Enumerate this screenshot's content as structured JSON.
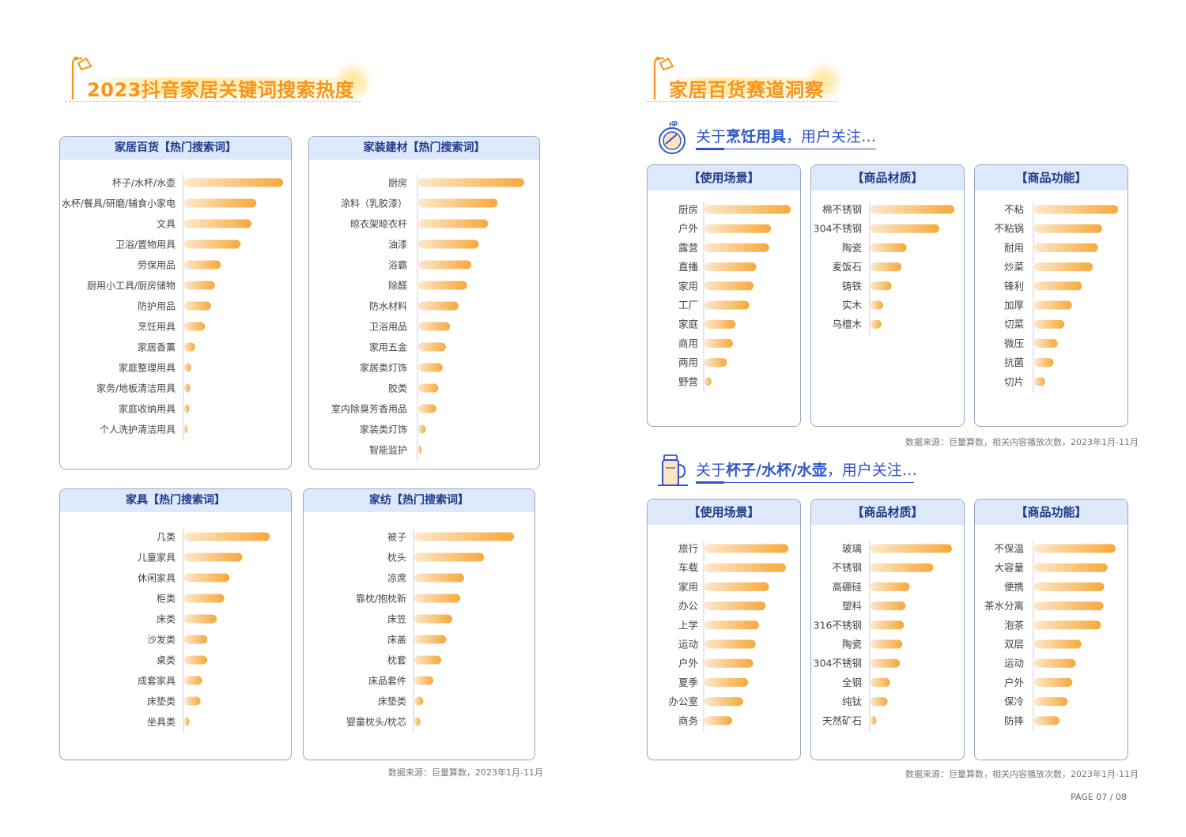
{
  "left_title": "2023抖音家居关键词搜索热度",
  "right_title": "家居百货赛道洞察",
  "colors": {
    "bar_start": "#fde8cc",
    "bar_end": "#f7a83a",
    "header_bg": "#dde9fb",
    "header_text": "#1f3a8a",
    "title_orange": "#f7941d",
    "accent_blue": "#2f55c8"
  },
  "icons": {
    "title_icon": "lamp-icon",
    "cooking_icon": "frying-pan-icon",
    "cup_icon": "kettle-icon"
  },
  "left_source": "数据来源：巨量算数，2023年1月-11月",
  "right_source": "数据来源：巨量算数，相关内容播放次数，2023年1月-11月",
  "page_number": "PAGE 07 / 08",
  "cooking_heading": {
    "pre": "关于",
    "bold": "烹饪用具",
    "post": "，用户关注…"
  },
  "cup_heading": {
    "pre": "关于",
    "bold": "杯子/水杯/水壶",
    "post": "，用户关注…"
  },
  "chart_data": [
    {
      "type": "bar",
      "title": "家居百货【热门搜索词】",
      "categories": [
        "杯子/水杯/水壶",
        "水杯/餐具/研磨/辅食小家电",
        "文具",
        "卫浴/置物用具",
        "劳保用品",
        "厨用小工具/厨房储物",
        "防护用品",
        "烹饪用具",
        "家居香薰",
        "家庭整理用具",
        "家务/地板清洁用具",
        "家庭收纳用具",
        "个人洗护清洁用具"
      ],
      "values": [
        100,
        73,
        68,
        57,
        37,
        31,
        27,
        21,
        11,
        7,
        6,
        5,
        3
      ]
    },
    {
      "type": "bar",
      "title": "家装建材【热门搜索词】",
      "categories": [
        "厨房",
        "涂料（乳胶漆）",
        "晾衣架晾衣杆",
        "油漆",
        "浴霸",
        "除醛",
        "防水材料",
        "卫浴用品",
        "家用五金",
        "家居类灯饰",
        "胶类",
        "室内除臭芳香用品",
        "家装类灯饰",
        "智能监护"
      ],
      "values": [
        100,
        75,
        66,
        57,
        50,
        46,
        38,
        30,
        26,
        23,
        19,
        17,
        7,
        3
      ]
    },
    {
      "type": "bar",
      "title": "家具【热门搜索词】",
      "categories": [
        "几类",
        "儿童家具",
        "休闲家具",
        "柜类",
        "床类",
        "沙发类",
        "桌类",
        "成套家具",
        "床垫类",
        "坐具类"
      ],
      "values": [
        100,
        68,
        53,
        47,
        38,
        27,
        27,
        21,
        19,
        6
      ]
    },
    {
      "type": "bar",
      "title": "家纺【热门搜索词】",
      "categories": [
        "被子",
        "枕头",
        "凉席",
        "靠枕/抱枕新",
        "床笠",
        "床盖",
        "枕套",
        "床品套件",
        "床垫类",
        "婴童枕头/枕芯"
      ],
      "values": [
        100,
        70,
        50,
        46,
        38,
        32,
        27,
        19,
        9,
        6
      ]
    },
    {
      "type": "bar",
      "title": "【使用场景】",
      "categories": [
        "厨房",
        "户外",
        "露营",
        "直播",
        "家用",
        "工厂",
        "家庭",
        "商用",
        "两用",
        "野营"
      ],
      "values": [
        100,
        77,
        75,
        60,
        57,
        52,
        36,
        33,
        26,
        8
      ]
    },
    {
      "type": "bar",
      "title": "【商品材质】",
      "categories": [
        "棉不锈钢",
        "304不锈钢",
        "陶瓷",
        "麦饭石",
        "铸铁",
        "实木",
        "乌檀木"
      ],
      "values": [
        100,
        82,
        43,
        37,
        25,
        15,
        13
      ]
    },
    {
      "type": "bar",
      "title": "【商品功能】",
      "categories": [
        "不粘",
        "不粘锅",
        "耐用",
        "炒菜",
        "锋利",
        "加厚",
        "切菜",
        "微压",
        "抗菌",
        "切片"
      ],
      "values": [
        100,
        81,
        76,
        70,
        57,
        45,
        36,
        28,
        23,
        13
      ]
    },
    {
      "type": "bar",
      "title": "【使用场景】",
      "categories": [
        "旅行",
        "车载",
        "家用",
        "办公",
        "上学",
        "运动",
        "户外",
        "夏季",
        "办公室",
        "商务"
      ],
      "values": [
        100,
        97,
        77,
        73,
        65,
        61,
        58,
        52,
        46,
        33
      ]
    },
    {
      "type": "bar",
      "title": "【商品材质】",
      "categories": [
        "玻璃",
        "不锈钢",
        "高硼硅",
        "塑料",
        "316不锈钢",
        "陶瓷",
        "304不锈钢",
        "全钢",
        "纯钛",
        "天然矿石"
      ],
      "values": [
        100,
        77,
        48,
        43,
        41,
        39,
        36,
        24,
        21,
        7
      ]
    },
    {
      "type": "bar",
      "title": "【商品功能】",
      "categories": [
        "不保温",
        "大容量",
        "便携",
        "茶水分离",
        "泡茶",
        "双层",
        "运动",
        "户外",
        "保冷",
        "防摔"
      ],
      "values": [
        100,
        90,
        86,
        85,
        82,
        58,
        51,
        47,
        41,
        31
      ]
    }
  ]
}
